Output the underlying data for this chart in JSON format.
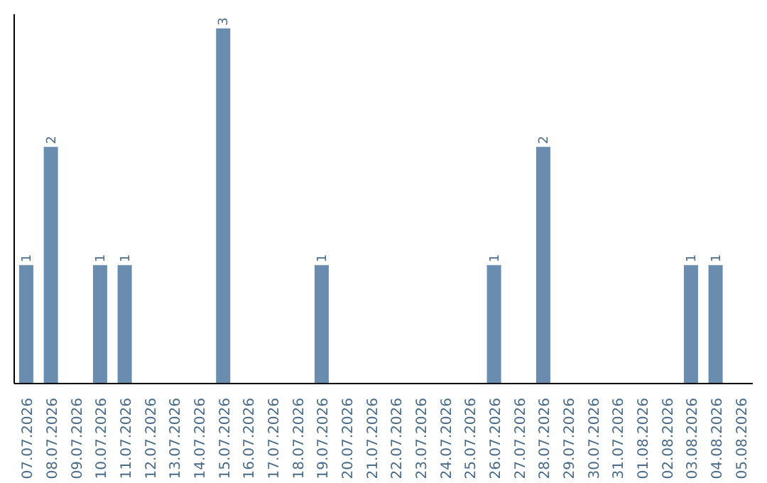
{
  "chart_data": {
    "type": "bar",
    "categories": [
      "07.07.2026",
      "08.07.2026",
      "09.07.2026",
      "10.07.2026",
      "11.07.2026",
      "12.07.2026",
      "13.07.2026",
      "14.07.2026",
      "15.07.2026",
      "16.07.2026",
      "17.07.2026",
      "18.07.2026",
      "19.07.2026",
      "20.07.2026",
      "21.07.2026",
      "22.07.2026",
      "23.07.2026",
      "24.07.2026",
      "25.07.2026",
      "26.07.2026",
      "27.07.2026",
      "28.07.2026",
      "29.07.2026",
      "30.07.2026",
      "31.07.2026",
      "01.08.2026",
      "02.08.2026",
      "03.08.2026",
      "04.08.2026",
      "05.08.2026"
    ],
    "values": [
      1,
      2,
      0,
      1,
      1,
      0,
      0,
      0,
      3,
      0,
      0,
      0,
      1,
      0,
      0,
      0,
      0,
      0,
      0,
      1,
      0,
      2,
      0,
      0,
      0,
      0,
      0,
      1,
      1,
      0
    ],
    "value_labels": [
      "1",
      "2",
      null,
      "1",
      "1",
      null,
      null,
      null,
      "3",
      null,
      null,
      null,
      "1",
      null,
      null,
      null,
      null,
      null,
      null,
      "1",
      null,
      "2",
      null,
      null,
      null,
      null,
      null,
      "1",
      "1",
      null
    ],
    "color": "#6a8caf",
    "grid": false,
    "legend": false,
    "tick_labels": "x"
  }
}
